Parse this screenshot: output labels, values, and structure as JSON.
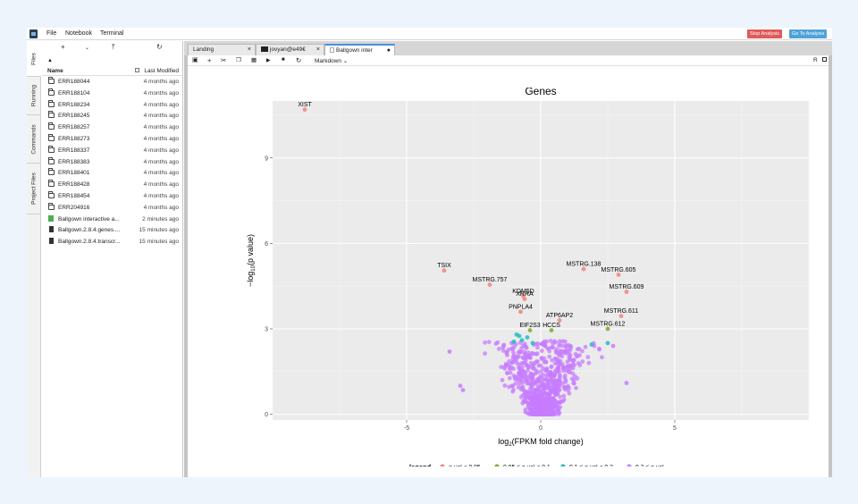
{
  "menubar": {
    "items": [
      "File",
      "Notebook",
      "Terminal"
    ],
    "stop_label": "Stop Analysis",
    "go_label": "Go To Analysis",
    "stop_color": "#e05a5a",
    "go_color": "#4ea3d8"
  },
  "sidetabs": [
    "Files",
    "Running",
    "Commands",
    "Project Files"
  ],
  "filebrowser": {
    "toolbar_icons": [
      "plus-icon",
      "chevron-down-icon",
      "upload-icon",
      "refresh-icon"
    ],
    "header": {
      "name": "Name",
      "modified": "Last Modified"
    },
    "files": [
      {
        "name": "ERR188044",
        "type": "folder",
        "modified": "4 months ago"
      },
      {
        "name": "ERR188104",
        "type": "folder",
        "modified": "4 months ago"
      },
      {
        "name": "ERR188234",
        "type": "folder",
        "modified": "4 months ago"
      },
      {
        "name": "ERR188245",
        "type": "folder",
        "modified": "4 months ago"
      },
      {
        "name": "ERR188257",
        "type": "folder",
        "modified": "4 months ago"
      },
      {
        "name": "ERR188273",
        "type": "folder",
        "modified": "4 months ago"
      },
      {
        "name": "ERR188337",
        "type": "folder",
        "modified": "4 months ago"
      },
      {
        "name": "ERR188383",
        "type": "folder",
        "modified": "4 months ago"
      },
      {
        "name": "ERR188401",
        "type": "folder",
        "modified": "4 months ago"
      },
      {
        "name": "ERR188428",
        "type": "folder",
        "modified": "4 months ago"
      },
      {
        "name": "ERR188454",
        "type": "folder",
        "modified": "4 months ago"
      },
      {
        "name": "ERR204916",
        "type": "folder",
        "modified": "4 months ago"
      },
      {
        "name": "Ballgown interactive a...",
        "type": "notebook",
        "modified": "2 minutes ago"
      },
      {
        "name": "Ballgown.2.8.4.genes....",
        "type": "file",
        "modified": "15 minutes ago"
      },
      {
        "name": "Ballgown.2.8.4.transcr...",
        "type": "file",
        "modified": "15 minutes ago"
      }
    ]
  },
  "tabs": [
    {
      "label": "Landing",
      "icon": "",
      "closer": "×"
    },
    {
      "label": "jovyan@e49€",
      "icon": "terminal-icon",
      "closer": "×"
    },
    {
      "label": "Ballgown inter",
      "icon": "notebook-icon",
      "closer": "●"
    }
  ],
  "notebook_toolbar": {
    "icons": [
      "save-icon",
      "plus-icon",
      "scissors-icon",
      "copy-icon",
      "paste-icon",
      "play-icon",
      "stop-icon",
      "restart-icon"
    ],
    "cell_type": "Markdown",
    "kernel": "R"
  },
  "chart_data": {
    "type": "scatter",
    "title": "Genes",
    "xlabel": "log2(FPKM fold change)",
    "ylabel": "-log10(p value)",
    "xlim": [
      -10,
      10
    ],
    "ylim": [
      -0.2,
      11
    ],
    "x_ticks": [
      -5,
      0,
      5
    ],
    "y_ticks": [
      0,
      3,
      6,
      9
    ],
    "grid": true,
    "legend_placement": "bottom",
    "legend_title": "legend",
    "legend": [
      {
        "label": "q-val < 0.05",
        "color": "#f08a80"
      },
      {
        "label": "0.05 ≤ q-val < 0.1",
        "color": "#7fae3a"
      },
      {
        "label": "0.1 ≤ q-val < 0.2",
        "color": "#21bcc4"
      },
      {
        "label": "0.2 ≤ q-val",
        "color": "#c77cff"
      }
    ],
    "labeled_points": [
      {
        "label": "XIST",
        "x": -8.8,
        "y": 10.7,
        "group": 0
      },
      {
        "label": "TSIX",
        "x": -3.6,
        "y": 5.05,
        "group": 0
      },
      {
        "label": "MSTRG.757",
        "x": -1.9,
        "y": 4.55,
        "group": 0
      },
      {
        "label": "KDM5D",
        "x": -0.65,
        "y": 4.15,
        "group": 0
      },
      {
        "label": "XRRA",
        "x": -0.6,
        "y": 4.05,
        "group": 0
      },
      {
        "label": "PNPLA4",
        "x": -0.75,
        "y": 3.6,
        "group": 0
      },
      {
        "label": "MSTRG.138",
        "x": 1.6,
        "y": 5.1,
        "group": 0
      },
      {
        "label": "MSTRG.605",
        "x": 2.9,
        "y": 4.9,
        "group": 0
      },
      {
        "label": "MSTRG.609",
        "x": 3.2,
        "y": 4.3,
        "group": 0
      },
      {
        "label": "ATP6AP2",
        "x": 0.7,
        "y": 3.3,
        "group": 0
      },
      {
        "label": "MSTRG.611",
        "x": 3.0,
        "y": 3.45,
        "group": 0
      },
      {
        "label": "EIF2S3",
        "x": -0.4,
        "y": 2.95,
        "group": 1
      },
      {
        "label": "HCCS",
        "x": 0.4,
        "y": 2.95,
        "group": 1
      },
      {
        "label": "MSTRG.612",
        "x": 2.5,
        "y": 3.0,
        "group": 1
      }
    ],
    "other_points": [
      {
        "x": -0.9,
        "y": 2.8,
        "group": 2
      },
      {
        "x": -0.7,
        "y": 2.6,
        "group": 2
      },
      {
        "x": -1.0,
        "y": 2.55,
        "group": 2
      },
      {
        "x": -0.5,
        "y": 2.7,
        "group": 2
      },
      {
        "x": -0.8,
        "y": 2.75,
        "group": 2
      },
      {
        "x": -0.3,
        "y": 2.5,
        "group": 2
      },
      {
        "x": 1.9,
        "y": 2.45,
        "group": 2
      },
      {
        "x": 2.5,
        "y": 2.5,
        "group": 2
      },
      {
        "x": -3.4,
        "y": 2.2,
        "group": 3
      },
      {
        "x": -3.0,
        "y": 1.0,
        "group": 3
      },
      {
        "x": -2.9,
        "y": 0.85,
        "group": 3
      },
      {
        "x": 3.2,
        "y": 1.1,
        "group": 3
      },
      {
        "x": 2.7,
        "y": 2.4,
        "group": 3
      }
    ],
    "dense_cluster_group": 3
  }
}
